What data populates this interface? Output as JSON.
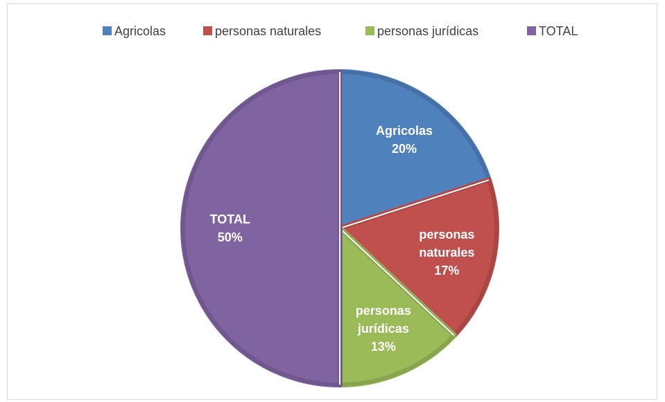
{
  "chart_data": {
    "type": "pie",
    "categories": [
      "Agricolas",
      "personas naturales",
      "personas jurídicas",
      "TOTAL"
    ],
    "values": [
      20,
      17,
      13,
      50
    ],
    "value_labels": [
      "20%",
      "17%",
      "13%",
      "50%"
    ],
    "colors": [
      "#4f81bd",
      "#c0504d",
      "#9bbb59",
      "#8064a2"
    ],
    "legend": "top"
  }
}
